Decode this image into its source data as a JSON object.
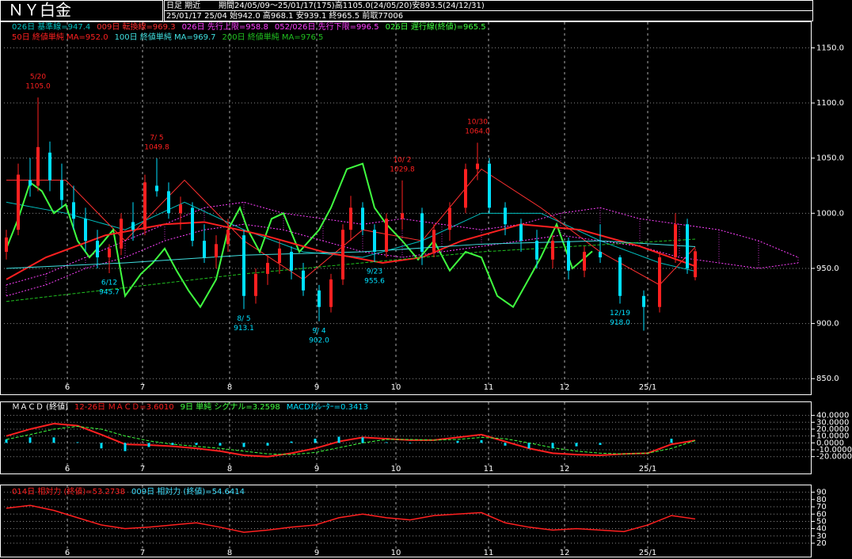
{
  "header": {
    "title": "ＮＹ白金",
    "mode": "日足 期近",
    "period": "期間24/05/09～25/01/17(175)高1105.0(24/05/20)安893.5(24/12/31)",
    "last": "25/01/17 25/04 始942.0 高968.1 安939.1 終965.5 前取77006"
  },
  "chart_data": [
    {
      "type": "candlestick",
      "xlim": [
        -0.6,
        203.4
      ],
      "ylim": [
        848,
        1174
      ],
      "xticks": [
        {
          "value": 15.4,
          "label": "6"
        },
        {
          "value": 34.4,
          "label": "7"
        },
        {
          "value": 56.4,
          "label": "8"
        },
        {
          "value": 78.4,
          "label": "9"
        },
        {
          "value": 98.4,
          "label": "10"
        },
        {
          "value": 121.8,
          "label": "11"
        },
        {
          "value": 141,
          "label": "12"
        },
        {
          "value": 162,
          "label": "25/1"
        }
      ],
      "yticks": [
        {
          "value": 850,
          "label": "850.0"
        },
        {
          "value": 900,
          "label": "900.0"
        },
        {
          "value": 950,
          "label": "950.0"
        },
        {
          "value": 1000,
          "label": "1000.0"
        },
        {
          "value": 1050,
          "label": "1050.0"
        },
        {
          "value": 1100,
          "label": "1100.0"
        },
        {
          "value": 1150,
          "label": "1150.0"
        }
      ],
      "grid": true,
      "up_color": "#ff2020",
      "down_color": "#00e0ff",
      "candles": {
        "x": [
          0,
          3,
          6,
          8,
          11,
          14,
          17,
          20,
          23,
          26,
          29,
          32,
          35,
          38,
          41,
          44,
          47,
          50,
          53,
          56,
          60,
          63,
          66,
          69,
          72,
          75,
          79,
          82,
          85,
          87,
          90,
          93,
          96,
          100,
          105,
          108,
          112,
          116,
          119,
          122,
          126,
          130,
          134,
          138,
          142,
          146,
          150,
          155,
          161,
          165,
          169,
          172,
          174
        ],
        "open": [
          965,
          985,
          1030,
          1025,
          1055,
          1030,
          1010,
          995,
          975,
          960,
          968,
          992,
          985,
          1025,
          1020,
          1000,
          1005,
          975,
          960,
          972,
          980,
          925,
          945,
          955,
          965,
          948,
          930,
          915,
          940,
          985,
          1005,
          985,
          965,
          995,
          1000,
          965,
          985,
          1005,
          1040,
          1045,
          1005,
          990,
          975,
          958,
          975,
          948,
          965,
          960,
          925,
          915,
          960,
          990,
          942
        ],
        "high": [
          985,
          1045,
          1050,
          1105,
          1065,
          1045,
          1025,
          1005,
          985,
          972,
          1000,
          1010,
          1035,
          1049.8,
          1028,
          1015,
          1010,
          990,
          980,
          995,
          985,
          950,
          962,
          975,
          970,
          955,
          935,
          945,
          990,
          1015.8,
          1010,
          990,
          1000,
          1029.8,
          1005,
          990,
          1010,
          1045,
          1064,
          1050,
          1010,
          995,
          985,
          980,
          978,
          970,
          990,
          962,
          930,
          965,
          1000,
          995,
          968.1
        ],
        "low": [
          958,
          980,
          1015,
          1020,
          1020,
          1005,
          985,
          965,
          950,
          945.7,
          962,
          975,
          980,
          1015,
          995,
          985,
          970,
          955,
          950,
          965,
          913.1,
          918,
          935,
          945,
          940,
          925,
          902,
          910,
          935,
          975,
          980,
          955.6,
          960,
          985,
          953,
          960,
          975,
          1000,
          1030,
          1000,
          980,
          965,
          950,
          950,
          940,
          942,
          955,
          918,
          893.5,
          910,
          955,
          945,
          939.1
        ],
        "close": [
          978,
          1035,
          1025,
          1060,
          1030,
          1012,
          995,
          975,
          960,
          968,
          995,
          985,
          1028,
          1020,
          1000,
          1008,
          975,
          960,
          972,
          985,
          925,
          945,
          955,
          968,
          948,
          930,
          915,
          940,
          985,
          1005,
          985,
          965,
          995,
          1000,
          965,
          985,
          1005,
          1040,
          1045,
          1005,
          990,
          975,
          958,
          975,
          948,
          965,
          960,
          925,
          915,
          960,
          990,
          950,
          965.5
        ]
      },
      "series": [
        {
          "name": "026日 基準線=947.4",
          "color": "#00c0c0",
          "style": "solid",
          "width": 1,
          "x": [
            0,
            15,
            30,
            45,
            60,
            75,
            90,
            105,
            120,
            135,
            150,
            165,
            174
          ],
          "values": [
            1010,
            1000,
            985,
            1010,
            985,
            965,
            960,
            975,
            1000,
            1000,
            975,
            955,
            947.4
          ]
        },
        {
          "name": "009日 転換線=969.3",
          "color": "#ff3030",
          "style": "solid",
          "width": 1,
          "x": [
            0,
            15,
            30,
            45,
            60,
            75,
            90,
            105,
            120,
            135,
            150,
            165,
            174
          ],
          "values": [
            1030,
            1030,
            975,
            1030,
            975,
            940,
            985,
            975,
            1040,
            1005,
            965,
            935,
            969.3
          ]
        },
        {
          "name": "026日 先行上限=958.8",
          "color": "#ff40ff",
          "style": "cloud",
          "width": 1,
          "x": [
            0,
            10,
            20,
            30,
            40,
            50,
            60,
            70,
            80,
            90,
            100,
            110,
            120,
            130,
            140,
            150,
            160,
            170,
            180,
            190,
            200
          ],
          "values": [
            935,
            945,
            960,
            975,
            990,
            1005,
            1010,
            1000,
            995,
            990,
            995,
            990,
            985,
            990,
            1000,
            1005,
            995,
            990,
            985,
            975,
            960
          ]
        },
        {
          "name": "052/026日 先行下限=996.5",
          "color": "#ff40ff",
          "style": "cloud",
          "width": 1,
          "x": [
            0,
            10,
            20,
            30,
            40,
            50,
            60,
            70,
            80,
            90,
            100,
            110,
            120,
            130,
            140,
            150,
            160,
            170,
            180,
            190,
            200
          ],
          "values": [
            925,
            935,
            950,
            960,
            975,
            985,
            990,
            985,
            975,
            965,
            960,
            965,
            970,
            975,
            980,
            975,
            970,
            960,
            955,
            950,
            955
          ]
        },
        {
          "name": "026日 遅行線(終値)=965.5",
          "color": "#40ff40",
          "style": "solid",
          "width": 2,
          "x": [
            0,
            3,
            6,
            9,
            12,
            15,
            18,
            21,
            24,
            27,
            30,
            34,
            37,
            40,
            43,
            46,
            49,
            53,
            56,
            59,
            61,
            64,
            67,
            70,
            74,
            79,
            82,
            86,
            90,
            93,
            96,
            100,
            104,
            108,
            112,
            116,
            120,
            124,
            128,
            135,
            139,
            143,
            148
          ],
          "values": [
            968,
            995,
            1028,
            1020,
            1000,
            1008,
            975,
            960,
            972,
            985,
            925,
            945,
            955,
            968,
            948,
            930,
            915,
            940,
            985,
            1005,
            985,
            965,
            995,
            1000,
            965,
            985,
            1005,
            1040,
            1045,
            1005,
            990,
            975,
            958,
            975,
            948,
            965,
            960,
            925,
            915,
            960,
            990,
            950,
            965.5
          ]
        },
        {
          "name": "50日 終値単純 MA=952.0",
          "color": "#ff2020",
          "style": "solid",
          "width": 2,
          "x": [
            0,
            10,
            25,
            40,
            50,
            65,
            80,
            95,
            105,
            115,
            130,
            145,
            160,
            174
          ],
          "values": [
            940,
            960,
            980,
            990,
            992,
            980,
            965,
            955,
            960,
            975,
            990,
            985,
            970,
            952
          ]
        },
        {
          "name": "100日 終値単純 MA=969.7",
          "color": "#40e0e0",
          "style": "solid",
          "width": 1,
          "x": [
            0,
            30,
            60,
            90,
            120,
            150,
            174
          ],
          "values": [
            950,
            955,
            962,
            965,
            972,
            975,
            969.7
          ]
        },
        {
          "name": "200日 終値単純 MA=976.5",
          "color": "#20c020",
          "style": "dashed",
          "width": 1,
          "x": [
            0,
            60,
            120,
            174
          ],
          "values": [
            920,
            945,
            965,
            976.5
          ]
        }
      ],
      "high_labels": [
        {
          "date": "5/20",
          "label": "1105.0",
          "value": 1105,
          "x": 8
        },
        {
          "date": "7/ 5",
          "label": "1049.8",
          "value": 1049.8,
          "x": 38
        },
        {
          "date": "10/ 2",
          "label": "1029.8",
          "value": 1029.8,
          "x": 100
        },
        {
          "date": "10/30",
          "label": "1064.0",
          "value": 1064,
          "x": 119
        }
      ],
      "low_labels": [
        {
          "date": "6/12",
          "label": "945.7",
          "value": 945.7,
          "x": 26
        },
        {
          "date": "8/ 5",
          "label": "913.1",
          "value": 913.1,
          "x": 60
        },
        {
          "date": "9/ 4",
          "label": "902.0",
          "value": 902,
          "x": 79
        },
        {
          "date": "9/23",
          "label": "955.6",
          "value": 955.6,
          "x": 93
        },
        {
          "date": "12/19",
          "label": "918.0",
          "value": 918,
          "x": 155
        }
      ]
    },
    {
      "type": "macd",
      "title": "ＭＡＣＤ (終値)",
      "xlim": [
        -0.6,
        203.4
      ],
      "ylim": [
        -33,
        47.6
      ],
      "xticks": [
        {
          "value": 15.4,
          "label": "6"
        },
        {
          "value": 34.4,
          "label": "7"
        },
        {
          "value": 56.4,
          "label": "8"
        },
        {
          "value": 78.4,
          "label": "9"
        },
        {
          "value": 98.4,
          "label": "10"
        },
        {
          "value": 121.8,
          "label": "11"
        },
        {
          "value": 141,
          "label": "12"
        },
        {
          "value": 162,
          "label": "25/1"
        }
      ],
      "yticks": [
        {
          "value": -20,
          "label": "-20.0000"
        },
        {
          "value": -10,
          "label": "-10.0000"
        },
        {
          "value": 0,
          "label": "0.0000"
        },
        {
          "value": 10,
          "label": "10.0000"
        },
        {
          "value": 20,
          "label": "20.0000"
        },
        {
          "value": 30,
          "label": "30.0000"
        },
        {
          "value": 40,
          "label": "40.0000"
        }
      ],
      "grid": true,
      "x": [
        0,
        6,
        12,
        18,
        24,
        30,
        36,
        42,
        48,
        54,
        60,
        66,
        72,
        78,
        84,
        90,
        96,
        102,
        108,
        114,
        120,
        126,
        132,
        138,
        144,
        150,
        156,
        162,
        168,
        174
      ],
      "series": [
        {
          "name": "12-26日 ＭＡＣＤ=3.6010",
          "color": "#ff2020",
          "style": "solid",
          "width": 2,
          "values": [
            10,
            20,
            28,
            25,
            12,
            -2,
            -3,
            -5,
            -8,
            -12,
            -18,
            -20,
            -15,
            -8,
            2,
            8,
            6,
            4,
            4,
            8,
            12,
            2,
            -8,
            -15,
            -17,
            -18,
            -16,
            -15,
            -2,
            3.601
          ]
        },
        {
          "name": "9日 単純 シグナル=3.2598",
          "color": "#40ff40",
          "style": "dashed",
          "width": 1,
          "values": [
            5,
            12,
            20,
            24,
            20,
            10,
            3,
            -2,
            -5,
            -8,
            -12,
            -16,
            -17,
            -14,
            -7,
            0,
            5,
            5,
            4,
            5,
            8,
            6,
            0,
            -7,
            -12,
            -15,
            -16,
            -15,
            -8,
            3.2598
          ]
        },
        {
          "name": "MACDｵｼﾚｰﾀｰ=0.3413",
          "color": "#00e0ff",
          "style": "bar",
          "width": 3,
          "values": [
            5,
            8,
            8,
            1,
            -8,
            -12,
            -6,
            -3,
            -3,
            -4,
            -6,
            -4,
            2,
            6,
            9,
            8,
            1,
            -1,
            0,
            3,
            4,
            -4,
            -8,
            -8,
            -5,
            -3,
            0,
            0,
            6,
            0.3413
          ]
        }
      ]
    },
    {
      "type": "line",
      "xlim": [
        -0.6,
        203.4
      ],
      "ylim": [
        13.5,
        94
      ],
      "xticks": [
        {
          "value": 15.4,
          "label": "6"
        },
        {
          "value": 34.4,
          "label": "7"
        },
        {
          "value": 56.4,
          "label": "8"
        },
        {
          "value": 78.4,
          "label": "9"
        },
        {
          "value": 98.4,
          "label": "10"
        },
        {
          "value": 121.8,
          "label": "11"
        },
        {
          "value": 141,
          "label": "12"
        },
        {
          "value": 162,
          "label": "25/1"
        }
      ],
      "yticks": [
        20,
        30,
        40,
        50,
        60,
        70,
        80,
        90
      ],
      "grid": true,
      "x": [
        0,
        6,
        12,
        18,
        24,
        30,
        36,
        42,
        48,
        54,
        60,
        66,
        72,
        78,
        84,
        90,
        96,
        102,
        108,
        114,
        120,
        126,
        132,
        138,
        144,
        150,
        156,
        162,
        168,
        174
      ],
      "series": [
        {
          "name": "014日 相対力 (終値)=53.2738",
          "color": "#ff2020",
          "style": "solid",
          "width": 1.5,
          "values": [
            68,
            72,
            65,
            55,
            45,
            40,
            42,
            45,
            48,
            42,
            35,
            38,
            42,
            45,
            55,
            60,
            55,
            52,
            58,
            60,
            62,
            48,
            42,
            38,
            40,
            38,
            36,
            45,
            58,
            53.2738
          ]
        }
      ],
      "legend_text": "009日 相対力 (終値)=54.6414"
    }
  ]
}
